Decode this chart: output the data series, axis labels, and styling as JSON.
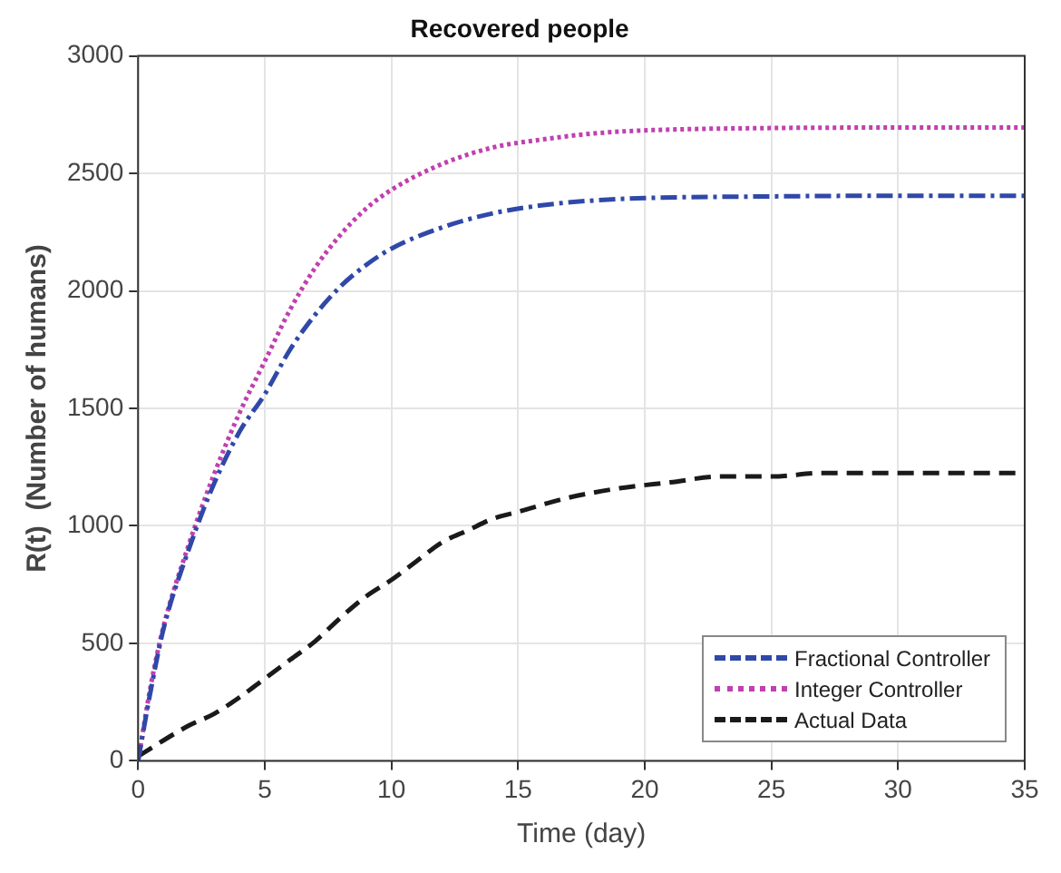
{
  "chart_data": {
    "type": "line",
    "title": "Recovered people",
    "xlabel": "Time (day)",
    "ylabel": "R(t)  (Number of humans)",
    "xlim": [
      0,
      35
    ],
    "xticks": [
      0,
      5,
      10,
      15,
      20,
      25,
      30,
      35
    ],
    "ylim": [
      0,
      3000
    ],
    "yticks": [
      0,
      500,
      1000,
      1500,
      2000,
      2500,
      3000
    ],
    "grid": true,
    "legend": "bottom right",
    "marker": "none",
    "series": [
      {
        "name": "Fractional Controller",
        "color": "#3048a8",
        "line_style": "dashdot",
        "x": [
          0,
          0.5,
          1,
          2,
          3,
          4,
          5,
          6,
          7,
          8,
          9,
          10,
          12,
          14,
          16,
          18,
          20,
          25,
          30,
          35
        ],
        "values": [
          0,
          300,
          560,
          900,
          1180,
          1400,
          1560,
          1750,
          1900,
          2020,
          2110,
          2180,
          2270,
          2330,
          2365,
          2385,
          2395,
          2402,
          2405,
          2405
        ]
      },
      {
        "name": "Integer Controller",
        "color": "#c040b0",
        "line_style": "dotted",
        "x": [
          0,
          0.5,
          1,
          2,
          3,
          4,
          5,
          6,
          7,
          8,
          9,
          10,
          12,
          14,
          16,
          18,
          20,
          25,
          30,
          35
        ],
        "values": [
          0,
          320,
          570,
          920,
          1220,
          1480,
          1700,
          1920,
          2100,
          2240,
          2350,
          2430,
          2540,
          2610,
          2645,
          2670,
          2683,
          2693,
          2695,
          2695
        ]
      },
      {
        "name": "Actual Data",
        "color": "#1a1a1a",
        "line_style": "dashed",
        "x": [
          0,
          2,
          3,
          4,
          5,
          6,
          7,
          8,
          9,
          10,
          11,
          12,
          13,
          14,
          15,
          17,
          19,
          21,
          23,
          25,
          27,
          30,
          35
        ],
        "values": [
          20,
          150,
          200,
          270,
          350,
          430,
          510,
          610,
          700,
          770,
          850,
          930,
          980,
          1030,
          1060,
          1120,
          1160,
          1185,
          1210,
          1210,
          1225,
          1225,
          1225
        ]
      }
    ]
  }
}
